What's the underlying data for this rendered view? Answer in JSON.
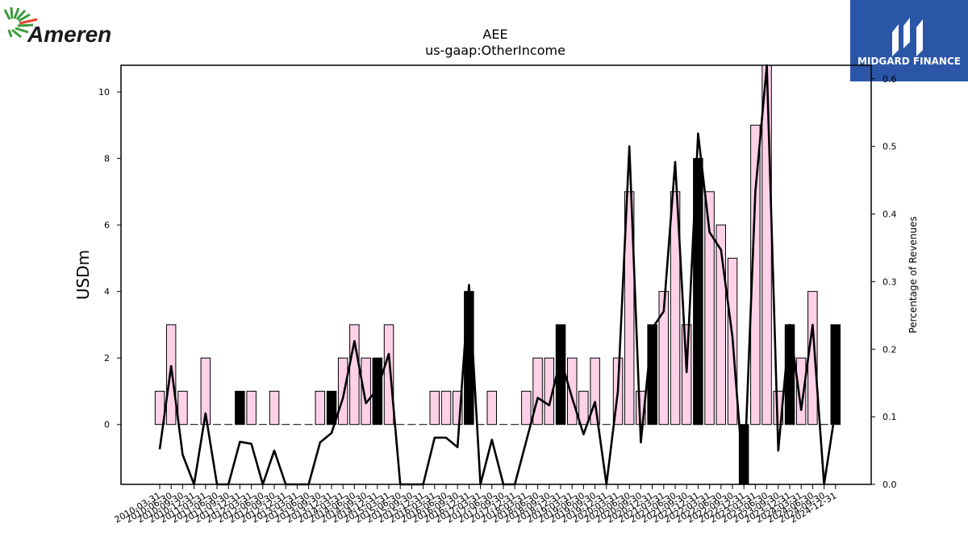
{
  "brand": {
    "company_logo_text": "Ameren",
    "publisher_logo_text": "MIDGARD FINANCE"
  },
  "chart_data": {
    "type": "bar",
    "title": "AEE",
    "subtitle": "us-gaap:OtherIncome",
    "ylabel": "USDm",
    "y2label": "Percentage of Revenues",
    "ylim": [
      -1.8,
      10.8
    ],
    "y2lim": [
      0.0,
      0.62
    ],
    "yticks": [
      0,
      2,
      4,
      6,
      8,
      10
    ],
    "y2ticks": [
      0.0,
      0.1,
      0.2,
      0.3,
      0.4,
      0.5,
      0.6
    ],
    "y2ticklabels": [
      "0.0",
      "0.1",
      "0.2",
      "0.3",
      "0.4",
      "0.5",
      "0.6"
    ],
    "grid": false,
    "colors": {
      "bar_default": "#ffd1e8",
      "bar_highlight": "#000000",
      "bar_edge": "#000000",
      "line": "#000000",
      "baseline": "#000000"
    },
    "categories": [
      "2010-03-31",
      "2010-06-30",
      "2010-09-30",
      "2010-12-31",
      "2011-03-31",
      "2011-06-30",
      "2011-09-30",
      "2011-12-31",
      "2012-03-31",
      "2012-06-30",
      "2012-09-30",
      "2012-12-31",
      "2013-03-31",
      "2013-06-30",
      "2013-09-30",
      "2013-12-31",
      "2014-03-31",
      "2014-06-30",
      "2014-09-30",
      "2014-12-31",
      "2015-03-31",
      "2015-06-30",
      "2015-09-30",
      "2015-12-31",
      "2016-03-31",
      "2016-06-30",
      "2016-09-30",
      "2016-12-31",
      "2017-03-31",
      "2017-06-30",
      "2017-09-30",
      "2017-12-31",
      "2018-03-31",
      "2018-06-30",
      "2018-09-30",
      "2018-12-31",
      "2019-03-31",
      "2019-06-30",
      "2019-09-30",
      "2019-12-31",
      "2020-03-31",
      "2020-06-30",
      "2020-09-30",
      "2020-12-31",
      "2021-03-31",
      "2021-06-30",
      "2021-09-30",
      "2021-12-31",
      "2022-03-31",
      "2022-06-30",
      "2022-09-30",
      "2022-12-31",
      "2023-03-31",
      "2023-06-30",
      "2023-09-30",
      "2023-12-31",
      "2024-03-31",
      "2024-06-30",
      "2024-09-30",
      "2024-12-31"
    ],
    "series": [
      {
        "values": [
          1,
          3,
          1,
          0,
          2,
          0,
          0,
          1,
          1,
          0,
          1,
          0,
          0,
          0,
          1,
          1,
          2,
          3,
          2,
          2,
          3,
          0,
          0,
          0,
          1,
          1,
          1,
          4,
          0,
          1,
          0,
          0,
          1,
          2,
          2,
          3,
          2,
          1,
          2,
          0,
          2,
          7,
          1,
          3,
          4,
          7,
          3,
          8,
          7,
          6,
          5,
          -2,
          9,
          11,
          1,
          3,
          2,
          4,
          0,
          3
        ],
        "highlight": [
          false,
          false,
          false,
          false,
          false,
          false,
          false,
          true,
          false,
          false,
          false,
          false,
          false,
          false,
          false,
          true,
          false,
          false,
          false,
          true,
          false,
          false,
          false,
          false,
          false,
          false,
          false,
          true,
          false,
          false,
          false,
          false,
          false,
          false,
          false,
          true,
          false,
          false,
          false,
          false,
          false,
          false,
          false,
          true,
          false,
          false,
          false,
          true,
          false,
          false,
          false,
          true,
          false,
          false,
          false,
          true,
          false,
          false,
          false,
          true
        ]
      },
      {
        "values": [
          0.052,
          0.175,
          0.044,
          0.0,
          0.105,
          0.0,
          0.0,
          0.063,
          0.06,
          0.0,
          0.05,
          0.0,
          0.0,
          0.0,
          0.062,
          0.076,
          0.128,
          0.212,
          0.12,
          0.141,
          0.193,
          0.0,
          0.0,
          0.0,
          0.069,
          0.069,
          0.055,
          0.295,
          0.0,
          0.066,
          0.0,
          0.0,
          0.064,
          0.128,
          0.117,
          0.186,
          0.128,
          0.074,
          0.122,
          0.0,
          0.138,
          0.5,
          0.062,
          0.231,
          0.256,
          0.477,
          0.166,
          0.519,
          0.373,
          0.347,
          0.218,
          0.0,
          0.433,
          0.62,
          0.05,
          0.236,
          0.11,
          0.236,
          0.0,
          0.111
        ]
      }
    ]
  }
}
